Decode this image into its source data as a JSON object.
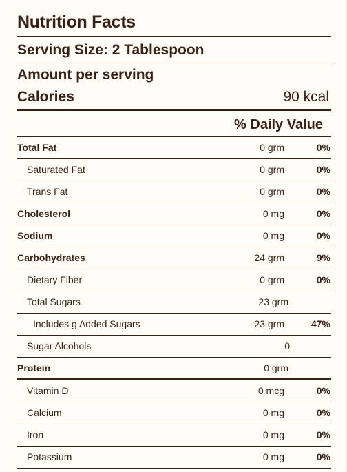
{
  "label": {
    "title": "Nutrition Facts",
    "serving_size": "Serving Size: 2 Tablespoon",
    "amount_per_serving": "Amount per serving",
    "calories_label": "Calories",
    "calories_value": "90 kcal",
    "daily_value_header": "% Daily Value"
  },
  "nutrients": [
    {
      "name": "Total Fat",
      "amount": "0 grm",
      "pct": "0%"
    },
    {
      "name": "Saturated Fat",
      "amount": "0 grm",
      "pct": "0%"
    },
    {
      "name": "Trans Fat",
      "amount": "0 grm",
      "pct": "0%"
    },
    {
      "name": "Cholesterol",
      "amount": "0 mg",
      "pct": "0%"
    },
    {
      "name": "Sodium",
      "amount": "0 mg",
      "pct": "0%"
    },
    {
      "name": "Carbohydrates",
      "amount": "24 grm",
      "pct": "9%"
    },
    {
      "name": "Dietary Fiber",
      "amount": "0 grm",
      "pct": "0%"
    },
    {
      "name": "Total Sugars",
      "amount": "23 grm",
      "pct": ""
    },
    {
      "name": "Includes g Added Sugars",
      "amount": "23 grm",
      "pct": "47%"
    },
    {
      "name": "Sugar Alcohols",
      "amount": "0",
      "pct": ""
    },
    {
      "name": "Protein",
      "amount": "0 grm",
      "pct": ""
    },
    {
      "name": "Vitamin D",
      "amount": "0 mcg",
      "pct": "0%"
    },
    {
      "name": "Calcium",
      "amount": "0 mg",
      "pct": "0%"
    },
    {
      "name": "Iron",
      "amount": "0 mg",
      "pct": "0%"
    },
    {
      "name": "Potassium",
      "amount": "0 mg",
      "pct": "0%"
    }
  ],
  "colors": {
    "text": "#3b1f12",
    "background": "#fffdf8"
  }
}
